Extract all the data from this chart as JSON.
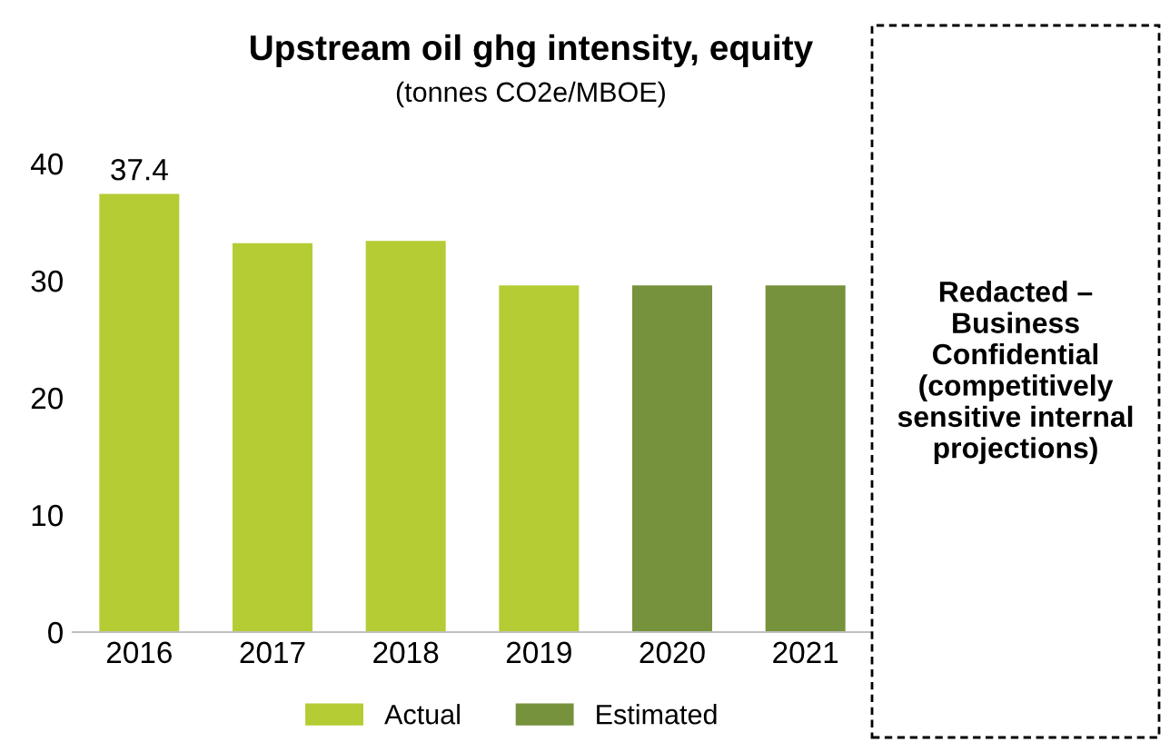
{
  "chart_data": {
    "type": "bar",
    "title": "Upstream oil ghg intensity, equity",
    "subtitle": "(tonnes CO2e/MBOE)",
    "categories": [
      "2016",
      "2017",
      "2018",
      "2019",
      "2020",
      "2021"
    ],
    "series": [
      {
        "name": "Actual",
        "color": "#b5cc34",
        "values": [
          37.4,
          33.2,
          33.4,
          29.6,
          null,
          null
        ],
        "value_labels": [
          "37.4",
          null,
          null,
          null,
          null,
          null
        ]
      },
      {
        "name": "Estimated",
        "color": "#76923c",
        "values": [
          null,
          null,
          null,
          null,
          29.6,
          29.6
        ]
      }
    ],
    "ylim": [
      0,
      40
    ],
    "yticks": [
      0,
      10,
      20,
      30,
      40
    ],
    "grid": false,
    "legend": "bottom",
    "annotations": [
      "Redacted –\nBusiness\nConfidential\n(competitively\nsensitive internal\nprojections)"
    ]
  }
}
